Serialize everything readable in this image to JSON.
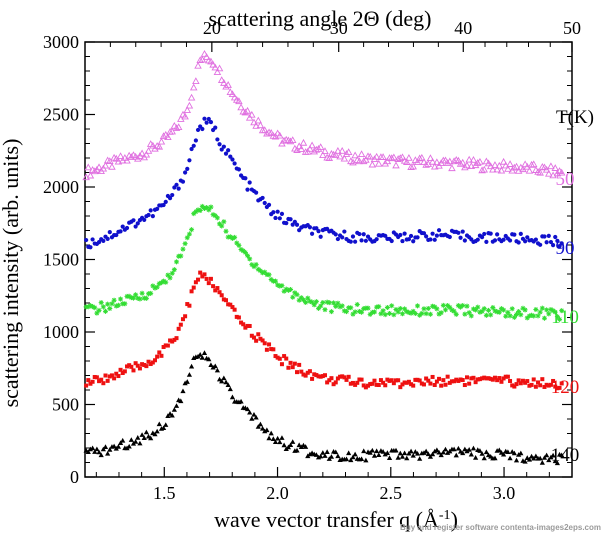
{
  "chart_data": {
    "type": "scatter",
    "title": "",
    "xlabel_prefix": "wave vector transfer q (",
    "xlabel_unit": "Å",
    "xlabel_exp": "-1",
    "xlabel_suffix": ")",
    "ylabel": "scattering intensity (arb. units)",
    "top_axis_label": "scattering angle 2Θ (deg)",
    "legend_title": "T(K)",
    "xlim": [
      1.15,
      3.3
    ],
    "ylim": [
      0,
      3000
    ],
    "x_ticks": [
      1.5,
      2.0,
      2.5,
      3.0
    ],
    "x_tick_labels": [
      "1.5",
      "2.0",
      "2.5",
      "3.0"
    ],
    "y_ticks": [
      0,
      500,
      1000,
      1500,
      2000,
      2500,
      3000
    ],
    "y_tick_labels": [
      "0",
      "500",
      "1000",
      "1500",
      "2000",
      "2500",
      "3000"
    ],
    "top_ticks": [
      20,
      30,
      40,
      50
    ],
    "top_tick_labels": [
      "20",
      "30",
      "40",
      "50"
    ],
    "top_axis_q_positions": [
      1.15,
      1.71,
      2.27,
      2.82,
      3.3
    ],
    "grid": false,
    "legend_placement": "right",
    "series": [
      {
        "name": "50",
        "color": "#e070e0",
        "marker": "triangle-open",
        "x": [
          1.15,
          1.2,
          1.25,
          1.3,
          1.35,
          1.4,
          1.45,
          1.5,
          1.55,
          1.6,
          1.63,
          1.66,
          1.69,
          1.72,
          1.75,
          1.8,
          1.85,
          1.9,
          1.95,
          2.0,
          2.05,
          2.1,
          2.15,
          2.2,
          2.3,
          2.4,
          2.5,
          2.6,
          2.7,
          2.8,
          2.9,
          3.0,
          3.1,
          3.2,
          3.25
        ],
        "y": [
          2100,
          2120,
          2150,
          2180,
          2200,
          2230,
          2270,
          2320,
          2400,
          2520,
          2700,
          2880,
          2900,
          2860,
          2780,
          2650,
          2550,
          2460,
          2400,
          2340,
          2300,
          2280,
          2260,
          2240,
          2210,
          2190,
          2180,
          2170,
          2170,
          2160,
          2150,
          2140,
          2130,
          2110,
          2100
        ]
      },
      {
        "name": "90",
        "color": "#1010cc",
        "marker": "circle",
        "x": [
          1.15,
          1.2,
          1.25,
          1.3,
          1.35,
          1.4,
          1.45,
          1.5,
          1.55,
          1.6,
          1.63,
          1.66,
          1.69,
          1.72,
          1.75,
          1.8,
          1.85,
          1.9,
          1.95,
          2.0,
          2.05,
          2.1,
          2.15,
          2.2,
          2.3,
          2.4,
          2.5,
          2.6,
          2.7,
          2.8,
          2.9,
          3.0,
          3.1,
          3.2,
          3.25
        ],
        "y": [
          1600,
          1630,
          1660,
          1700,
          1740,
          1780,
          1820,
          1880,
          1980,
          2120,
          2300,
          2420,
          2450,
          2400,
          2300,
          2180,
          2050,
          1950,
          1870,
          1800,
          1760,
          1720,
          1700,
          1680,
          1660,
          1650,
          1650,
          1660,
          1670,
          1660,
          1650,
          1650,
          1640,
          1630,
          1620
        ]
      },
      {
        "name": "110",
        "color": "#33dd33",
        "marker": "star",
        "x": [
          1.15,
          1.2,
          1.25,
          1.3,
          1.35,
          1.4,
          1.45,
          1.5,
          1.55,
          1.6,
          1.63,
          1.66,
          1.69,
          1.72,
          1.75,
          1.8,
          1.85,
          1.9,
          1.95,
          2.0,
          2.05,
          2.1,
          2.15,
          2.2,
          2.3,
          2.4,
          2.5,
          2.6,
          2.7,
          2.8,
          2.9,
          3.0,
          3.1,
          3.2,
          3.25
        ],
        "y": [
          1150,
          1160,
          1180,
          1200,
          1220,
          1250,
          1290,
          1350,
          1450,
          1620,
          1790,
          1860,
          1850,
          1820,
          1760,
          1640,
          1550,
          1470,
          1400,
          1330,
          1280,
          1240,
          1210,
          1180,
          1160,
          1150,
          1150,
          1150,
          1150,
          1150,
          1140,
          1140,
          1130,
          1130,
          1120
        ]
      },
      {
        "name": "120",
        "color": "#ee1111",
        "marker": "square",
        "x": [
          1.15,
          1.2,
          1.25,
          1.3,
          1.35,
          1.4,
          1.45,
          1.5,
          1.55,
          1.6,
          1.63,
          1.66,
          1.69,
          1.72,
          1.75,
          1.8,
          1.85,
          1.9,
          1.95,
          2.0,
          2.05,
          2.1,
          2.15,
          2.2,
          2.3,
          2.4,
          2.5,
          2.6,
          2.7,
          2.8,
          2.9,
          3.0,
          3.1,
          3.2,
          3.25
        ],
        "y": [
          650,
          660,
          690,
          710,
          740,
          770,
          810,
          870,
          960,
          1150,
          1320,
          1380,
          1370,
          1320,
          1250,
          1140,
          1060,
          980,
          900,
          830,
          780,
          740,
          710,
          680,
          660,
          650,
          650,
          650,
          660,
          670,
          660,
          660,
          650,
          650,
          640
        ]
      },
      {
        "name": "140",
        "color": "#000000",
        "marker": "triangle",
        "x": [
          1.15,
          1.2,
          1.25,
          1.3,
          1.35,
          1.4,
          1.45,
          1.5,
          1.55,
          1.6,
          1.63,
          1.66,
          1.69,
          1.72,
          1.75,
          1.8,
          1.85,
          1.9,
          1.95,
          2.0,
          2.05,
          2.1,
          2.15,
          2.2,
          2.3,
          2.4,
          2.5,
          2.6,
          2.7,
          2.8,
          2.9,
          3.0,
          3.1,
          3.2,
          3.25
        ],
        "y": [
          160,
          170,
          190,
          210,
          240,
          270,
          310,
          370,
          480,
          650,
          790,
          840,
          820,
          760,
          680,
          560,
          470,
          390,
          320,
          250,
          220,
          190,
          170,
          160,
          150,
          150,
          150,
          150,
          160,
          170,
          160,
          150,
          140,
          130,
          130
        ]
      }
    ]
  },
  "watermark": "Buy and register software contenta-images2eps.com"
}
